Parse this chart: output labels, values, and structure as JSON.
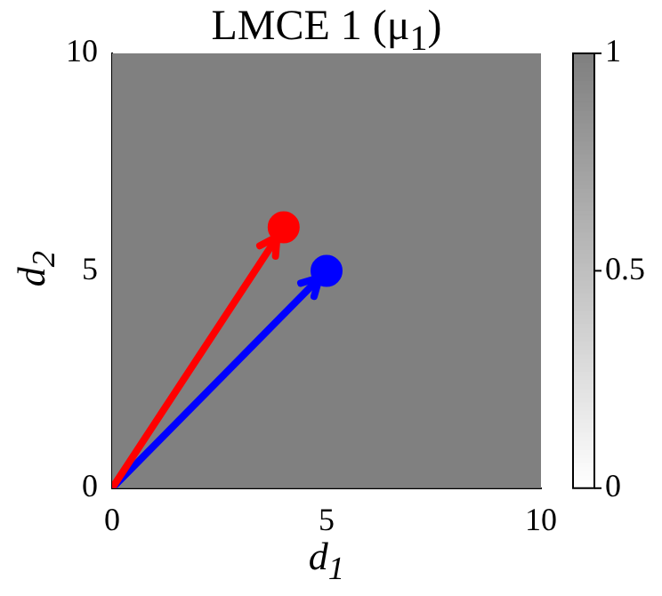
{
  "chart_data": {
    "type": "heatmap",
    "title": "LMCE 1 (μ$_{1}$)",
    "xlabel": "d$_{1}$",
    "ylabel": "d$_{2}$",
    "xlim": [
      0,
      10
    ],
    "ylim": [
      0,
      10
    ],
    "xticks": [
      0,
      5,
      10
    ],
    "yticks": [
      0,
      5,
      10
    ],
    "cells": [
      [
        1
      ]
    ],
    "clim": [
      0,
      1
    ],
    "cticks": [
      0,
      0.5,
      1
    ],
    "grid": false,
    "marker": "circle",
    "line_style": "solid",
    "series": [
      {
        "type": "line",
        "color": "#ff0000",
        "x": [
          0,
          4
        ],
        "values": [
          0,
          6
        ]
      },
      {
        "type": "line",
        "color": "#0000ff",
        "x": [
          0,
          5
        ],
        "values": [
          0,
          5
        ]
      }
    ]
  }
}
